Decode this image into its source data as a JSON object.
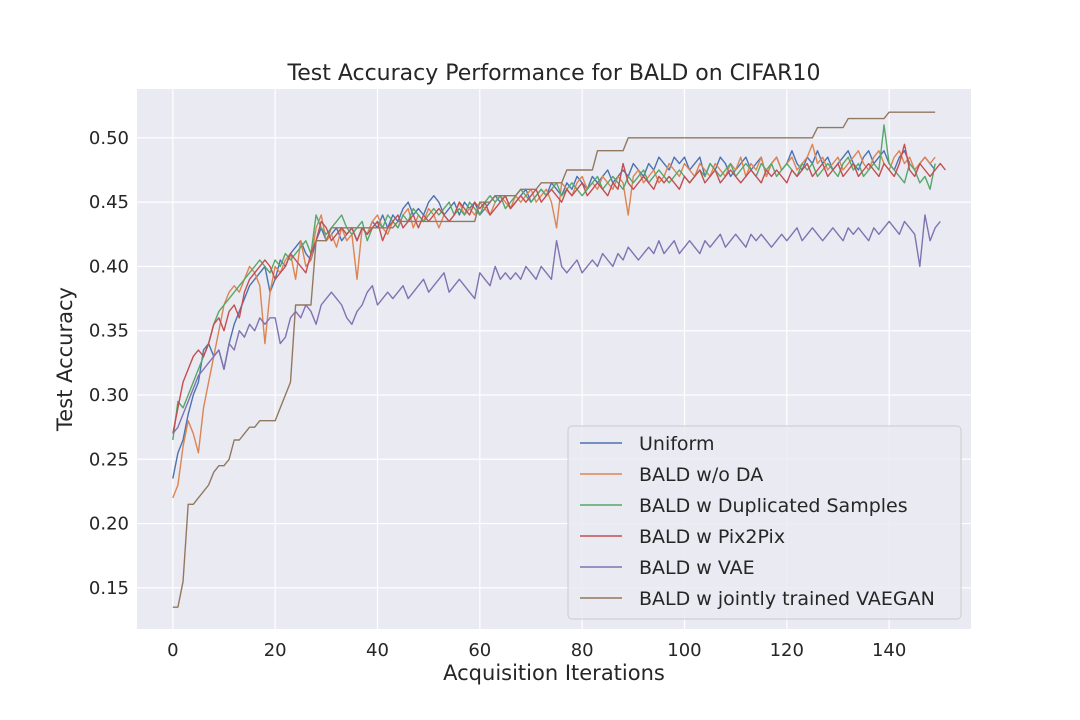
{
  "chart_data": {
    "type": "line",
    "title": "Test Accuracy Performance for BALD on CIFAR10",
    "xlabel": "Acquisition Iterations",
    "ylabel": "Test Accuracy",
    "xlim": [
      -7,
      156
    ],
    "ylim": [
      0.118,
      0.538
    ],
    "x_ticks": [
      0,
      20,
      40,
      60,
      80,
      100,
      120,
      140
    ],
    "y_ticks": [
      0.15,
      0.2,
      0.25,
      0.3,
      0.35,
      0.4,
      0.45,
      0.5
    ],
    "y_tick_labels": [
      "0.15",
      "0.20",
      "0.25",
      "0.30",
      "0.35",
      "0.40",
      "0.45",
      "0.50"
    ],
    "grid": true,
    "legend_position": "lower-right",
    "x_start": 0,
    "x_step": 1,
    "series": [
      {
        "name": "Uniform",
        "color": "#4c72b0",
        "values": [
          0.235,
          0.255,
          0.265,
          0.285,
          0.3,
          0.31,
          0.335,
          0.34,
          0.33,
          0.335,
          0.32,
          0.34,
          0.355,
          0.365,
          0.375,
          0.385,
          0.39,
          0.395,
          0.4,
          0.38,
          0.39,
          0.405,
          0.4,
          0.41,
          0.415,
          0.42,
          0.41,
          0.405,
          0.42,
          0.43,
          0.42,
          0.425,
          0.43,
          0.42,
          0.425,
          0.43,
          0.42,
          0.43,
          0.425,
          0.435,
          0.43,
          0.44,
          0.43,
          0.44,
          0.435,
          0.445,
          0.45,
          0.44,
          0.445,
          0.44,
          0.45,
          0.455,
          0.45,
          0.44,
          0.445,
          0.45,
          0.44,
          0.45,
          0.445,
          0.45,
          0.44,
          0.445,
          0.45,
          0.455,
          0.45,
          0.455,
          0.445,
          0.45,
          0.455,
          0.46,
          0.45,
          0.455,
          0.46,
          0.455,
          0.465,
          0.46,
          0.455,
          0.465,
          0.46,
          0.47,
          0.465,
          0.46,
          0.47,
          0.465,
          0.47,
          0.475,
          0.465,
          0.47,
          0.475,
          0.47,
          0.48,
          0.475,
          0.47,
          0.48,
          0.475,
          0.485,
          0.48,
          0.475,
          0.485,
          0.48,
          0.485,
          0.475,
          0.48,
          0.485,
          0.47,
          0.48,
          0.475,
          0.485,
          0.48,
          0.47,
          0.475,
          0.48,
          0.485,
          0.475,
          0.48,
          0.485,
          0.47,
          0.48,
          0.485,
          0.475,
          0.48,
          0.49,
          0.48,
          0.475,
          0.485,
          0.48,
          0.49,
          0.48,
          0.485,
          0.475,
          0.48,
          0.485,
          0.49,
          0.48,
          0.475,
          0.485,
          0.49,
          0.48,
          0.485,
          0.49,
          0.48,
          0.475,
          0.485,
          0.49,
          0.48,
          0.475,
          0.48,
          0.485,
          0.48,
          0.475
        ]
      },
      {
        "name": "BALD w/o DA",
        "color": "#dd8452",
        "values": [
          0.22,
          0.23,
          0.26,
          0.28,
          0.27,
          0.255,
          0.29,
          0.31,
          0.33,
          0.35,
          0.37,
          0.38,
          0.385,
          0.38,
          0.39,
          0.4,
          0.395,
          0.385,
          0.34,
          0.38,
          0.4,
          0.395,
          0.405,
          0.41,
          0.39,
          0.42,
          0.4,
          0.405,
          0.43,
          0.44,
          0.42,
          0.425,
          0.415,
          0.43,
          0.42,
          0.425,
          0.39,
          0.43,
          0.425,
          0.435,
          0.44,
          0.43,
          0.425,
          0.435,
          0.43,
          0.44,
          0.445,
          0.43,
          0.44,
          0.435,
          0.445,
          0.44,
          0.43,
          0.44,
          0.435,
          0.44,
          0.45,
          0.44,
          0.445,
          0.44,
          0.45,
          0.445,
          0.44,
          0.45,
          0.455,
          0.45,
          0.445,
          0.455,
          0.45,
          0.455,
          0.46,
          0.45,
          0.455,
          0.46,
          0.45,
          0.43,
          0.465,
          0.46,
          0.455,
          0.465,
          0.47,
          0.46,
          0.465,
          0.46,
          0.47,
          0.465,
          0.46,
          0.47,
          0.465,
          0.44,
          0.47,
          0.475,
          0.465,
          0.47,
          0.475,
          0.465,
          0.47,
          0.48,
          0.475,
          0.47,
          0.48,
          0.475,
          0.47,
          0.48,
          0.475,
          0.47,
          0.48,
          0.475,
          0.47,
          0.48,
          0.475,
          0.485,
          0.47,
          0.48,
          0.475,
          0.485,
          0.47,
          0.48,
          0.485,
          0.475,
          0.48,
          0.485,
          0.475,
          0.48,
          0.485,
          0.495,
          0.48,
          0.485,
          0.475,
          0.48,
          0.485,
          0.475,
          0.48,
          0.485,
          0.49,
          0.48,
          0.475,
          0.485,
          0.49,
          0.48,
          0.475,
          0.485,
          0.49,
          0.48,
          0.485,
          0.475,
          0.48,
          0.485,
          0.48,
          0.485
        ]
      },
      {
        "name": "BALD w Duplicated Samples",
        "color": "#55a868",
        "values": [
          0.265,
          0.295,
          0.29,
          0.3,
          0.31,
          0.32,
          0.33,
          0.34,
          0.355,
          0.365,
          0.37,
          0.375,
          0.38,
          0.385,
          0.39,
          0.395,
          0.4,
          0.405,
          0.4,
          0.395,
          0.405,
          0.4,
          0.41,
          0.405,
          0.41,
          0.415,
          0.42,
          0.41,
          0.44,
          0.43,
          0.425,
          0.43,
          0.435,
          0.44,
          0.43,
          0.425,
          0.43,
          0.435,
          0.42,
          0.43,
          0.435,
          0.43,
          0.44,
          0.435,
          0.43,
          0.44,
          0.435,
          0.445,
          0.44,
          0.435,
          0.44,
          0.445,
          0.44,
          0.445,
          0.45,
          0.44,
          0.445,
          0.44,
          0.45,
          0.445,
          0.44,
          0.45,
          0.455,
          0.45,
          0.455,
          0.445,
          0.45,
          0.455,
          0.46,
          0.455,
          0.45,
          0.455,
          0.46,
          0.455,
          0.46,
          0.465,
          0.455,
          0.46,
          0.465,
          0.46,
          0.455,
          0.46,
          0.465,
          0.47,
          0.46,
          0.465,
          0.47,
          0.465,
          0.46,
          0.47,
          0.465,
          0.47,
          0.475,
          0.465,
          0.47,
          0.475,
          0.47,
          0.465,
          0.47,
          0.475,
          0.47,
          0.465,
          0.47,
          0.475,
          0.47,
          0.48,
          0.475,
          0.47,
          0.475,
          0.48,
          0.47,
          0.475,
          0.48,
          0.475,
          0.47,
          0.48,
          0.475,
          0.48,
          0.47,
          0.475,
          0.48,
          0.475,
          0.47,
          0.48,
          0.475,
          0.48,
          0.47,
          0.475,
          0.48,
          0.475,
          0.47,
          0.48,
          0.485,
          0.475,
          0.48,
          0.47,
          0.475,
          0.48,
          0.475,
          0.51,
          0.48,
          0.475,
          0.47,
          0.465,
          0.48,
          0.475,
          0.465,
          0.47,
          0.46,
          0.48
        ]
      },
      {
        "name": "BALD w Pix2Pix",
        "color": "#c44e52",
        "values": [
          0.27,
          0.29,
          0.31,
          0.32,
          0.33,
          0.335,
          0.33,
          0.34,
          0.355,
          0.36,
          0.35,
          0.365,
          0.37,
          0.36,
          0.38,
          0.39,
          0.395,
          0.4,
          0.405,
          0.4,
          0.39,
          0.395,
          0.4,
          0.41,
          0.405,
          0.4,
          0.395,
          0.41,
          0.42,
          0.435,
          0.43,
          0.42,
          0.425,
          0.43,
          0.425,
          0.43,
          0.42,
          0.43,
          0.425,
          0.43,
          0.435,
          0.42,
          0.43,
          0.435,
          0.44,
          0.43,
          0.435,
          0.44,
          0.43,
          0.44,
          0.435,
          0.44,
          0.445,
          0.44,
          0.435,
          0.44,
          0.45,
          0.445,
          0.44,
          0.45,
          0.445,
          0.45,
          0.44,
          0.445,
          0.45,
          0.455,
          0.445,
          0.45,
          0.455,
          0.45,
          0.455,
          0.46,
          0.45,
          0.455,
          0.46,
          0.455,
          0.45,
          0.46,
          0.455,
          0.46,
          0.465,
          0.455,
          0.46,
          0.465,
          0.46,
          0.455,
          0.465,
          0.46,
          0.48,
          0.465,
          0.46,
          0.465,
          0.47,
          0.465,
          0.46,
          0.47,
          0.465,
          0.47,
          0.465,
          0.46,
          0.47,
          0.465,
          0.47,
          0.475,
          0.465,
          0.47,
          0.475,
          0.465,
          0.47,
          0.475,
          0.47,
          0.465,
          0.47,
          0.475,
          0.47,
          0.465,
          0.475,
          0.47,
          0.475,
          0.47,
          0.465,
          0.475,
          0.47,
          0.475,
          0.48,
          0.47,
          0.475,
          0.48,
          0.47,
          0.475,
          0.48,
          0.47,
          0.475,
          0.48,
          0.47,
          0.475,
          0.48,
          0.475,
          0.47,
          0.48,
          0.475,
          0.47,
          0.48,
          0.495,
          0.475,
          0.47,
          0.48,
          0.475,
          0.47,
          0.475,
          0.48,
          0.475
        ]
      },
      {
        "name": "BALD w VAE",
        "color": "#8172b3",
        "values": [
          0.27,
          0.275,
          0.285,
          0.295,
          0.305,
          0.315,
          0.32,
          0.325,
          0.33,
          0.335,
          0.32,
          0.34,
          0.335,
          0.35,
          0.345,
          0.355,
          0.35,
          0.36,
          0.355,
          0.36,
          0.36,
          0.34,
          0.345,
          0.36,
          0.365,
          0.36,
          0.37,
          0.365,
          0.355,
          0.37,
          0.375,
          0.38,
          0.375,
          0.37,
          0.36,
          0.355,
          0.365,
          0.37,
          0.38,
          0.385,
          0.37,
          0.375,
          0.38,
          0.375,
          0.38,
          0.385,
          0.375,
          0.38,
          0.385,
          0.39,
          0.38,
          0.385,
          0.39,
          0.395,
          0.38,
          0.385,
          0.39,
          0.385,
          0.38,
          0.375,
          0.395,
          0.39,
          0.385,
          0.4,
          0.39,
          0.395,
          0.39,
          0.395,
          0.39,
          0.4,
          0.395,
          0.39,
          0.4,
          0.395,
          0.39,
          0.42,
          0.4,
          0.395,
          0.4,
          0.405,
          0.395,
          0.4,
          0.405,
          0.4,
          0.41,
          0.405,
          0.4,
          0.41,
          0.405,
          0.415,
          0.41,
          0.405,
          0.41,
          0.415,
          0.41,
          0.42,
          0.41,
          0.415,
          0.42,
          0.41,
          0.415,
          0.42,
          0.415,
          0.41,
          0.42,
          0.415,
          0.42,
          0.425,
          0.415,
          0.42,
          0.425,
          0.42,
          0.415,
          0.425,
          0.42,
          0.425,
          0.42,
          0.415,
          0.42,
          0.425,
          0.42,
          0.425,
          0.43,
          0.42,
          0.425,
          0.43,
          0.425,
          0.42,
          0.425,
          0.43,
          0.425,
          0.42,
          0.43,
          0.425,
          0.43,
          0.425,
          0.42,
          0.43,
          0.425,
          0.43,
          0.435,
          0.43,
          0.425,
          0.435,
          0.43,
          0.425,
          0.4,
          0.44,
          0.42,
          0.43,
          0.435
        ]
      },
      {
        "name": "BALD w jointly trained VAEGAN",
        "color": "#937860",
        "values": [
          0.135,
          0.135,
          0.155,
          0.215,
          0.215,
          0.22,
          0.225,
          0.23,
          0.24,
          0.245,
          0.245,
          0.25,
          0.265,
          0.265,
          0.27,
          0.275,
          0.275,
          0.28,
          0.28,
          0.28,
          0.28,
          0.29,
          0.3,
          0.31,
          0.37,
          0.37,
          0.37,
          0.37,
          0.42,
          0.42,
          0.42,
          0.43,
          0.43,
          0.43,
          0.43,
          0.43,
          0.43,
          0.43,
          0.43,
          0.43,
          0.43,
          0.43,
          0.43,
          0.43,
          0.435,
          0.435,
          0.435,
          0.435,
          0.435,
          0.435,
          0.435,
          0.435,
          0.435,
          0.435,
          0.435,
          0.435,
          0.435,
          0.435,
          0.435,
          0.435,
          0.45,
          0.45,
          0.45,
          0.455,
          0.455,
          0.455,
          0.455,
          0.455,
          0.46,
          0.46,
          0.46,
          0.46,
          0.465,
          0.465,
          0.465,
          0.465,
          0.465,
          0.475,
          0.475,
          0.475,
          0.475,
          0.475,
          0.475,
          0.49,
          0.49,
          0.49,
          0.49,
          0.49,
          0.49,
          0.5,
          0.5,
          0.5,
          0.5,
          0.5,
          0.5,
          0.5,
          0.5,
          0.5,
          0.5,
          0.5,
          0.5,
          0.5,
          0.5,
          0.5,
          0.5,
          0.5,
          0.5,
          0.5,
          0.5,
          0.5,
          0.5,
          0.5,
          0.5,
          0.5,
          0.5,
          0.5,
          0.5,
          0.5,
          0.5,
          0.5,
          0.5,
          0.5,
          0.5,
          0.5,
          0.5,
          0.5,
          0.508,
          0.508,
          0.508,
          0.508,
          0.508,
          0.508,
          0.515,
          0.515,
          0.515,
          0.515,
          0.515,
          0.515,
          0.515,
          0.515,
          0.52,
          0.52,
          0.52,
          0.52,
          0.52,
          0.52,
          0.52,
          0.52,
          0.52,
          0.52
        ]
      }
    ]
  }
}
